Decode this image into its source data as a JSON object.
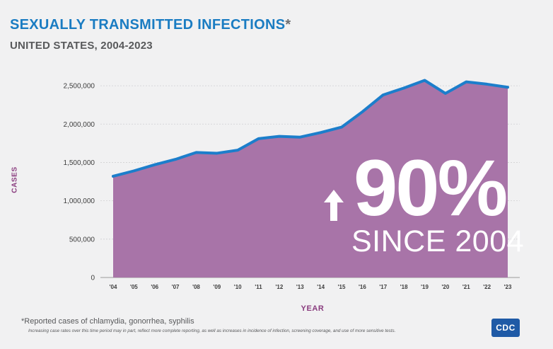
{
  "title": "SEXUALLY TRANSMITTED INFECTIONS",
  "title_marker": "*",
  "subtitle": "UNITED STATES, 2004-2023",
  "callout": {
    "percent": "90%",
    "since": "SINCE 2004",
    "arrow_icon": "up-arrow-icon"
  },
  "footnote": "*Reported cases of chlamydia, gonorrhea, syphilis",
  "footnote2": "Increasing case rates over this time period may in part, reflect more complete reporting, as well as increases in incidence of infection, screening coverage, and use of more sensitive tests.",
  "logo_text": "CDC",
  "colors": {
    "area": "#a874a8",
    "line": "#1c7ecb",
    "title": "#1a7cc2",
    "axis_label": "#8a3d7f"
  },
  "chart_data": {
    "type": "area",
    "title": "SEXUALLY TRANSMITTED INFECTIONS",
    "subtitle": "UNITED STATES, 2004-2023",
    "xlabel": "YEAR",
    "ylabel": "CASES",
    "ylim": [
      0,
      2750000
    ],
    "yticks": [
      0,
      500000,
      1000000,
      1500000,
      2000000,
      2500000
    ],
    "ytick_labels": [
      "0",
      "500,000",
      "1,000,000",
      "1,500,000",
      "2,000,000",
      "2,500,000"
    ],
    "grid": true,
    "categories": [
      "'04",
      "'05",
      "'06",
      "'07",
      "'08",
      "'09",
      "'10",
      "'11",
      "'12",
      "'13",
      "'14",
      "'15",
      "'16",
      "'17",
      "'18",
      "'19",
      "'20",
      "'21",
      "'22",
      "'23"
    ],
    "values": [
      1320000,
      1390000,
      1470000,
      1540000,
      1630000,
      1620000,
      1660000,
      1810000,
      1840000,
      1830000,
      1890000,
      1960000,
      2160000,
      2380000,
      2470000,
      2570000,
      2400000,
      2550000,
      2520000,
      2480000
    ]
  }
}
